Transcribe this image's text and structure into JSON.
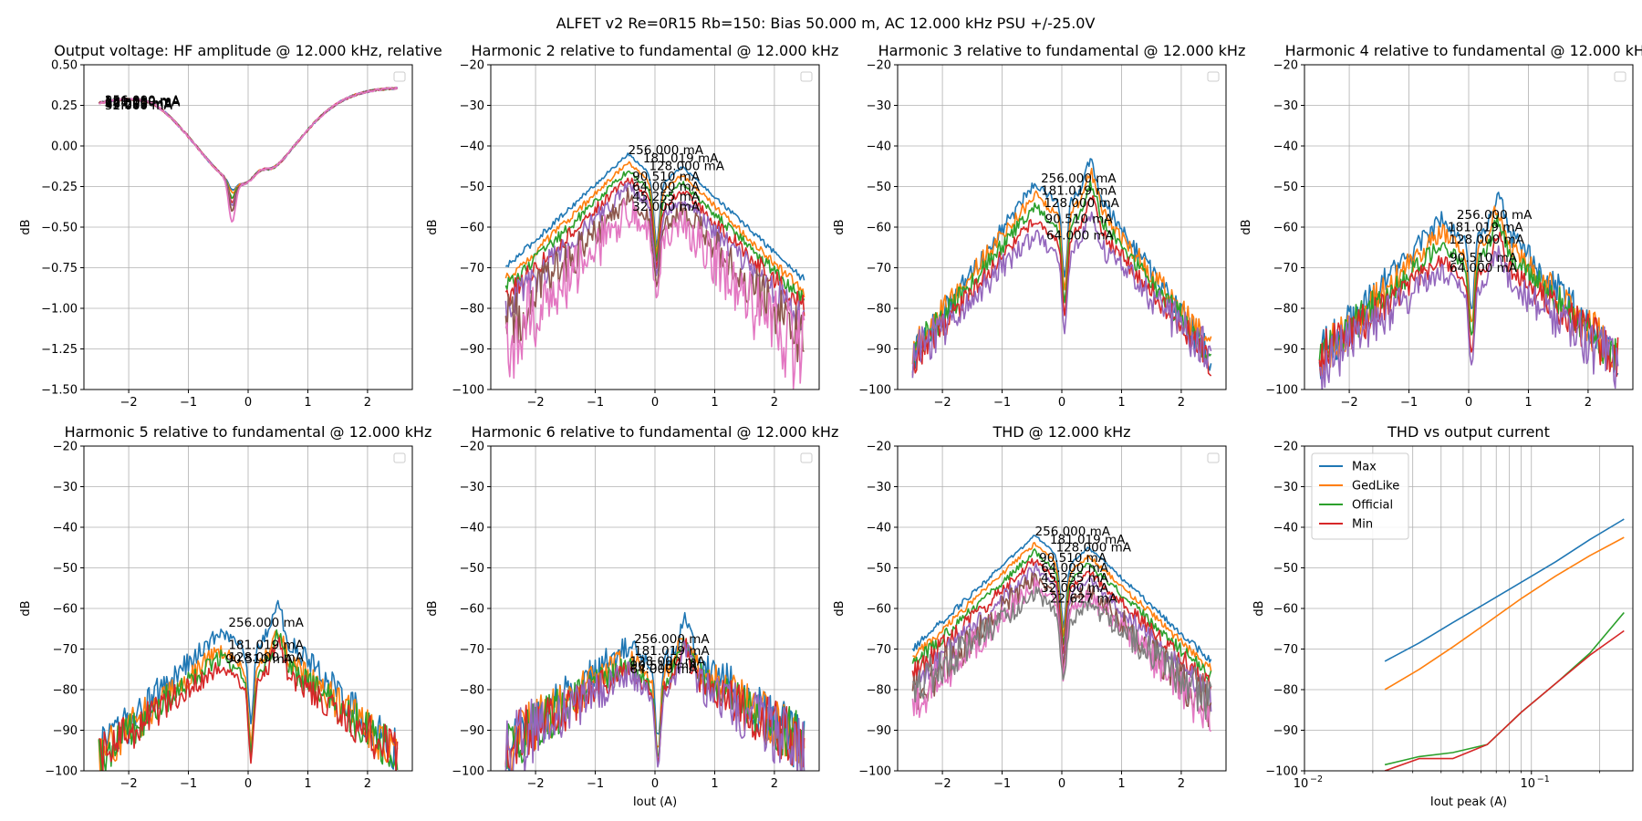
{
  "suptitle": "ALFET v2 Re=0R15 Rb=150: Bias 50.000 m, AC 12.000 kHz PSU +/-25.0V",
  "colors": [
    "#1f77b4",
    "#ff7f0e",
    "#2ca02c",
    "#d62728",
    "#9467bd",
    "#8c564b",
    "#e377c2",
    "#7f7f7f"
  ],
  "chart_data": [
    {
      "type": "line",
      "title": "Output voltage: HF amplitude @ 12.000 kHz, relative",
      "ylabel": "dB",
      "xlabel": "",
      "xlim": [
        -2.75,
        2.75
      ],
      "ylim": [
        -1.5,
        0.5
      ],
      "xticks": [
        -2,
        -1,
        0,
        1,
        2
      ],
      "yticks": [
        -1.5,
        -1.25,
        -1.0,
        -0.75,
        -0.5,
        -0.25,
        0.0,
        0.25,
        0.5
      ],
      "ytick_decimals": 2,
      "grid": true,
      "legend": "top-right-empty",
      "kind": "amp",
      "series": [
        {
          "color_idx": 0,
          "dip": -0.5
        },
        {
          "color_idx": 1,
          "dip": -0.52
        },
        {
          "color_idx": 2,
          "dip": -0.55
        },
        {
          "color_idx": 3,
          "dip": -0.58
        },
        {
          "color_idx": 4,
          "dip": -0.6
        },
        {
          "color_idx": 5,
          "dip": -0.63
        },
        {
          "color_idx": 6,
          "dip": -0.7
        }
      ],
      "annotations": [
        {
          "text": "256.000 mA",
          "x": -2.4,
          "y": 0.255
        },
        {
          "text": "181.019 mA",
          "x": -2.4,
          "y": 0.25
        },
        {
          "text": "128.000 mA",
          "x": -2.4,
          "y": 0.245
        },
        {
          "text": "90.510 mA",
          "x": -2.4,
          "y": 0.24
        },
        {
          "text": "64.000 mA",
          "x": -2.4,
          "y": 0.235
        },
        {
          "text": "45.255 mA",
          "x": -2.4,
          "y": 0.23
        },
        {
          "text": "32.000 mA",
          "x": -2.4,
          "y": 0.225
        }
      ]
    },
    {
      "type": "line",
      "title": "Harmonic 2 relative to fundamental @ 12.000 kHz",
      "ylabel": "dB",
      "xlabel": "",
      "xlim": [
        -2.75,
        2.75
      ],
      "ylim": [
        -100,
        -20
      ],
      "xticks": [
        -2,
        -1,
        0,
        1,
        2
      ],
      "yticks": [
        -100,
        -90,
        -80,
        -70,
        -60,
        -50,
        -40,
        -30,
        -20
      ],
      "ytick_decimals": 0,
      "grid": true,
      "legend": "top-right-empty",
      "kind": "h2",
      "series": [
        {
          "color_idx": 0,
          "peak": -42,
          "edge": -70,
          "noise": 0.5
        },
        {
          "color_idx": 1,
          "peak": -44,
          "edge": -73,
          "noise": 0.7
        },
        {
          "color_idx": 2,
          "peak": -46,
          "edge": -75,
          "noise": 1.0
        },
        {
          "color_idx": 3,
          "peak": -48,
          "edge": -77,
          "noise": 1.5
        },
        {
          "color_idx": 4,
          "peak": -50,
          "edge": -80,
          "noise": 2.5
        },
        {
          "color_idx": 5,
          "peak": -53,
          "edge": -85,
          "noise": 4
        },
        {
          "color_idx": 6,
          "peak": -56,
          "edge": -90,
          "noise": 6
        }
      ],
      "annotations": [
        {
          "text": "256.000 mA",
          "x": -0.45,
          "y": -42
        },
        {
          "text": "181.019 mA",
          "x": -0.2,
          "y": -44
        },
        {
          "text": "128.000 mA",
          "x": -0.1,
          "y": -46
        },
        {
          "text": "90.510 mA",
          "x": -0.38,
          "y": -48.5
        },
        {
          "text": "64.000 mA",
          "x": -0.38,
          "y": -51
        },
        {
          "text": "45.255 mA",
          "x": -0.38,
          "y": -53.5
        },
        {
          "text": "32.000 mA",
          "x": -0.38,
          "y": -56
        }
      ]
    },
    {
      "type": "line",
      "title": "Harmonic 3 relative to fundamental @ 12.000 kHz",
      "ylabel": "dB",
      "xlabel": "",
      "xlim": [
        -2.75,
        2.75
      ],
      "ylim": [
        -100,
        -20
      ],
      "xticks": [
        -2,
        -1,
        0,
        1,
        2
      ],
      "yticks": [
        -100,
        -90,
        -80,
        -70,
        -60,
        -50,
        -40,
        -30,
        -20
      ],
      "ytick_decimals": 0,
      "grid": true,
      "legend": "top-right-empty",
      "kind": "h3",
      "series": [
        {
          "color_idx": 0,
          "peak": -49,
          "edge": -92,
          "noise": 2
        },
        {
          "color_idx": 1,
          "peak": -52,
          "edge": -90,
          "noise": 2
        },
        {
          "color_idx": 2,
          "peak": -55,
          "edge": -91,
          "noise": 2
        },
        {
          "color_idx": 3,
          "peak": -58,
          "edge": -93,
          "noise": 2
        },
        {
          "color_idx": 4,
          "peak": -62,
          "edge": -92,
          "noise": 3
        }
      ],
      "annotations": [
        {
          "text": "256.000 mA",
          "x": -0.35,
          "y": -49
        },
        {
          "text": "181.019 mA",
          "x": -0.35,
          "y": -52
        },
        {
          "text": "128.000 mA",
          "x": -0.3,
          "y": -55
        },
        {
          "text": "90.510 mA",
          "x": -0.28,
          "y": -59
        },
        {
          "text": "64.000 mA",
          "x": -0.26,
          "y": -63
        }
      ]
    },
    {
      "type": "line",
      "title": "Harmonic 4 relative to fundamental @ 12.000 kHz",
      "ylabel": "dB",
      "xlabel": "",
      "xlim": [
        -2.75,
        2.75
      ],
      "ylim": [
        -100,
        -20
      ],
      "xticks": [
        -2,
        -1,
        0,
        1,
        2
      ],
      "yticks": [
        -100,
        -90,
        -80,
        -70,
        -60,
        -50,
        -40,
        -30,
        -20
      ],
      "ytick_decimals": 0,
      "grid": true,
      "legend": "top-right-empty",
      "kind": "h4",
      "series": [
        {
          "color_idx": 0,
          "peak": -58,
          "edge": -92,
          "noise": 3
        },
        {
          "color_idx": 1,
          "peak": -61,
          "edge": -92,
          "noise": 3
        },
        {
          "color_idx": 2,
          "peak": -64,
          "edge": -92,
          "noise": 3
        },
        {
          "color_idx": 3,
          "peak": -68,
          "edge": -92,
          "noise": 3
        },
        {
          "color_idx": 4,
          "peak": -71,
          "edge": -94,
          "noise": 4
        }
      ],
      "annotations": [
        {
          "text": "256.000 mA",
          "x": -0.2,
          "y": -58
        },
        {
          "text": "181.019 mA",
          "x": -0.35,
          "y": -61
        },
        {
          "text": "128.000 mA",
          "x": -0.33,
          "y": -64
        },
        {
          "text": "90.510 mA",
          "x": -0.32,
          "y": -68.5
        },
        {
          "text": "64.000 mA",
          "x": -0.32,
          "y": -71
        }
      ]
    },
    {
      "type": "line",
      "title": "Harmonic 5 relative to fundamental @ 12.000 kHz",
      "ylabel": "dB",
      "xlabel": "",
      "xlim": [
        -2.75,
        2.75
      ],
      "ylim": [
        -100,
        -20
      ],
      "xticks": [
        -2,
        -1,
        0,
        1,
        2
      ],
      "yticks": [
        -100,
        -90,
        -80,
        -70,
        -60,
        -50,
        -40,
        -30,
        -20
      ],
      "ytick_decimals": 0,
      "grid": true,
      "legend": "top-right-empty",
      "kind": "h5",
      "series": [
        {
          "color_idx": 0,
          "peak": -65,
          "edge": -96,
          "noise": 3
        },
        {
          "color_idx": 1,
          "peak": -70,
          "edge": -96,
          "noise": 3
        },
        {
          "color_idx": 2,
          "peak": -72,
          "edge": -96,
          "noise": 3
        },
        {
          "color_idx": 3,
          "peak": -74,
          "edge": -96,
          "noise": 3
        }
      ],
      "annotations": [
        {
          "text": "256.000 mA",
          "x": -0.33,
          "y": -64.5
        },
        {
          "text": "181.019 mA",
          "x": -0.33,
          "y": -70
        },
        {
          "text": "128.000 mA",
          "x": -0.33,
          "y": -73
        },
        {
          "text": "90.510 mA",
          "x": -0.38,
          "y": -73.5
        }
      ]
    },
    {
      "type": "line",
      "title": "Harmonic 6 relative to fundamental @ 12.000 kHz",
      "ylabel": "dB",
      "xlabel": "Iout (A)",
      "xlim": [
        -2.75,
        2.75
      ],
      "ylim": [
        -100,
        -20
      ],
      "xticks": [
        -2,
        -1,
        0,
        1,
        2
      ],
      "yticks": [
        -100,
        -90,
        -80,
        -70,
        -60,
        -50,
        -40,
        -30,
        -20
      ],
      "ytick_decimals": 0,
      "grid": true,
      "legend": "top-right-empty",
      "kind": "h6",
      "series": [
        {
          "color_idx": 0,
          "peak": -69,
          "edge": -94,
          "noise": 4
        },
        {
          "color_idx": 1,
          "peak": -72,
          "edge": -94,
          "noise": 4
        },
        {
          "color_idx": 2,
          "peak": -74,
          "edge": -94,
          "noise": 4
        },
        {
          "color_idx": 3,
          "peak": -75,
          "edge": -94,
          "noise": 4
        },
        {
          "color_idx": 4,
          "peak": -76,
          "edge": -95,
          "noise": 5
        }
      ],
      "annotations": [
        {
          "text": "256.000 mA",
          "x": -0.35,
          "y": -68.5
        },
        {
          "text": "181.019 mA",
          "x": -0.35,
          "y": -71.5
        },
        {
          "text": "128.000 mA",
          "x": -0.42,
          "y": -74
        },
        {
          "text": "90.510 mA",
          "x": -0.42,
          "y": -75
        },
        {
          "text": "64.000 mA",
          "x": -0.42,
          "y": -76
        }
      ]
    },
    {
      "type": "line",
      "title": "THD @ 12.000 kHz",
      "ylabel": "dB",
      "xlabel": "",
      "xlim": [
        -2.75,
        2.75
      ],
      "ylim": [
        -100,
        -20
      ],
      "xticks": [
        -2,
        -1,
        0,
        1,
        2
      ],
      "yticks": [
        -100,
        -90,
        -80,
        -70,
        -60,
        -50,
        -40,
        -30,
        -20
      ],
      "ytick_decimals": 0,
      "grid": true,
      "legend": "top-right-empty",
      "kind": "thd",
      "series": [
        {
          "color_idx": 0,
          "peak": -42,
          "edge": -70,
          "noise": 0.5
        },
        {
          "color_idx": 1,
          "peak": -44,
          "edge": -72,
          "noise": 0.7
        },
        {
          "color_idx": 2,
          "peak": -46,
          "edge": -74,
          "noise": 1
        },
        {
          "color_idx": 3,
          "peak": -48,
          "edge": -76,
          "noise": 1.5
        },
        {
          "color_idx": 4,
          "peak": -50,
          "edge": -79,
          "noise": 2
        },
        {
          "color_idx": 5,
          "peak": -52,
          "edge": -82,
          "noise": 3
        },
        {
          "color_idx": 6,
          "peak": -54,
          "edge": -84,
          "noise": 3
        },
        {
          "color_idx": 7,
          "peak": -56,
          "edge": -80,
          "noise": 3
        }
      ],
      "annotations": [
        {
          "text": "256.000 mA",
          "x": -0.45,
          "y": -42
        },
        {
          "text": "181.019 mA",
          "x": -0.2,
          "y": -44
        },
        {
          "text": "128.000 mA",
          "x": -0.1,
          "y": -46
        },
        {
          "text": "90.510 mA",
          "x": -0.38,
          "y": -48.5
        },
        {
          "text": "64.000 mA",
          "x": -0.35,
          "y": -51
        },
        {
          "text": "45.255 mA",
          "x": -0.35,
          "y": -53.5
        },
        {
          "text": "32.000 mA",
          "x": -0.35,
          "y": -56
        },
        {
          "text": "22.627 mA",
          "x": -0.2,
          "y": -58.5
        }
      ]
    },
    {
      "type": "line",
      "title": "THD vs output current",
      "ylabel": "dB",
      "xlabel": "Iout peak (A)",
      "xscale": "log",
      "xlim": [
        0.01,
        0.28
      ],
      "ylim": [
        -100,
        -20
      ],
      "xticks_major": [
        0.01,
        0.1
      ],
      "xtick_labels": [
        "10",
        "10"
      ],
      "xtick_exps": [
        "−2",
        "−1"
      ],
      "yticks": [
        -100,
        -90,
        -80,
        -70,
        -60,
        -50,
        -40,
        -30,
        -20
      ],
      "ytick_decimals": 0,
      "grid": true,
      "legend": "top-left",
      "kind": "log",
      "series": [
        {
          "name": "Max",
          "color_idx": 0,
          "x": [
            0.0226,
            0.032,
            0.045,
            0.064,
            0.0905,
            0.128,
            0.181,
            0.256
          ],
          "y": [
            -73,
            -68.5,
            -63.5,
            -58.5,
            -53.5,
            -48.5,
            -43,
            -38
          ]
        },
        {
          "name": "GedLike",
          "color_idx": 1,
          "x": [
            0.0226,
            0.032,
            0.045,
            0.064,
            0.0905,
            0.128,
            0.181,
            0.256
          ],
          "y": [
            -80,
            -75,
            -69.5,
            -63.5,
            -57.5,
            -52,
            -47,
            -42.5
          ]
        },
        {
          "name": "Official",
          "color_idx": 2,
          "x": [
            0.0226,
            0.032,
            0.045,
            0.064,
            0.0905,
            0.128,
            0.181,
            0.256
          ],
          "y": [
            -98.5,
            -96.5,
            -95.5,
            -93.5,
            -85.5,
            -78.5,
            -71,
            -61
          ]
        },
        {
          "name": "Min",
          "color_idx": 3,
          "x": [
            0.0226,
            0.032,
            0.045,
            0.064,
            0.0905,
            0.128,
            0.181,
            0.256
          ],
          "y": [
            -100,
            -97,
            -97,
            -93.5,
            -85.5,
            -78.5,
            -71.5,
            -65.5
          ]
        }
      ]
    }
  ]
}
